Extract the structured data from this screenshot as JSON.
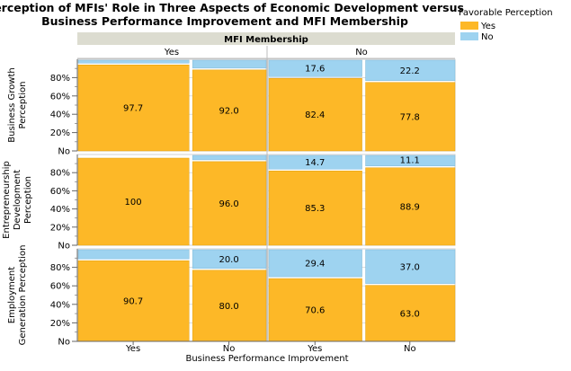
{
  "chart_data": {
    "type": "bar",
    "title_line1": "Perception of MFIs' Role in Three Aspects of Economic Development versus",
    "title_line2": "Business Performance Improvement and MFI Membership",
    "group_header": "MFI Membership",
    "groups": [
      "Yes",
      "No"
    ],
    "xlabel": "Business Performance Improvement",
    "categories": [
      "Yes",
      "No"
    ],
    "row_labels": [
      [
        "Business Growth",
        "Perception"
      ],
      [
        "Entrepreneurship",
        "Development",
        "Perception"
      ],
      [
        "Employment",
        "Generation Perception"
      ]
    ],
    "yticks": [
      "No",
      "20%",
      "40%",
      "60%",
      "80%"
    ],
    "ylim": [
      0,
      100
    ],
    "legend": {
      "title": "Favorable Perception",
      "items": [
        {
          "label": "Yes",
          "color": "#fdb827"
        },
        {
          "label": "No",
          "color": "#9ed3f0"
        }
      ],
      "position": "top-right"
    },
    "colors": {
      "yes": "#fdb827",
      "no": "#9ed3f0",
      "header": "#dcdcd0",
      "grid": "#c8c8c8"
    },
    "widths": [
      [
        0.6,
        0.4
      ],
      [
        0.51,
        0.49
      ]
    ],
    "rows": [
      {
        "cells": [
          {
            "yes": 97.7,
            "no": 2.3,
            "yes_label": "97.7",
            "no_label": ""
          },
          {
            "yes": 92.0,
            "no": 8.0,
            "yes_label": "92.0",
            "no_label": ""
          },
          {
            "yes": 82.4,
            "no": 17.6,
            "yes_label": "82.4",
            "no_label": "17.6"
          },
          {
            "yes": 77.8,
            "no": 22.2,
            "yes_label": "77.8",
            "no_label": "22.2"
          }
        ]
      },
      {
        "cells": [
          {
            "yes": 100,
            "no": 0,
            "yes_label": "100",
            "no_label": ""
          },
          {
            "yes": 96.0,
            "no": 4.0,
            "yes_label": "96.0",
            "no_label": ""
          },
          {
            "yes": 85.3,
            "no": 14.7,
            "yes_label": "85.3",
            "no_label": "14.7"
          },
          {
            "yes": 88.9,
            "no": 11.1,
            "yes_label": "88.9",
            "no_label": "11.1"
          }
        ]
      },
      {
        "cells": [
          {
            "yes": 90.7,
            "no": 9.3,
            "yes_label": "90.7",
            "no_label": ""
          },
          {
            "yes": 80.0,
            "no": 20.0,
            "yes_label": "80.0",
            "no_label": "20.0"
          },
          {
            "yes": 70.6,
            "no": 29.4,
            "yes_label": "70.6",
            "no_label": "29.4"
          },
          {
            "yes": 63.0,
            "no": 37.0,
            "yes_label": "63.0",
            "no_label": "37.0"
          }
        ]
      }
    ]
  }
}
